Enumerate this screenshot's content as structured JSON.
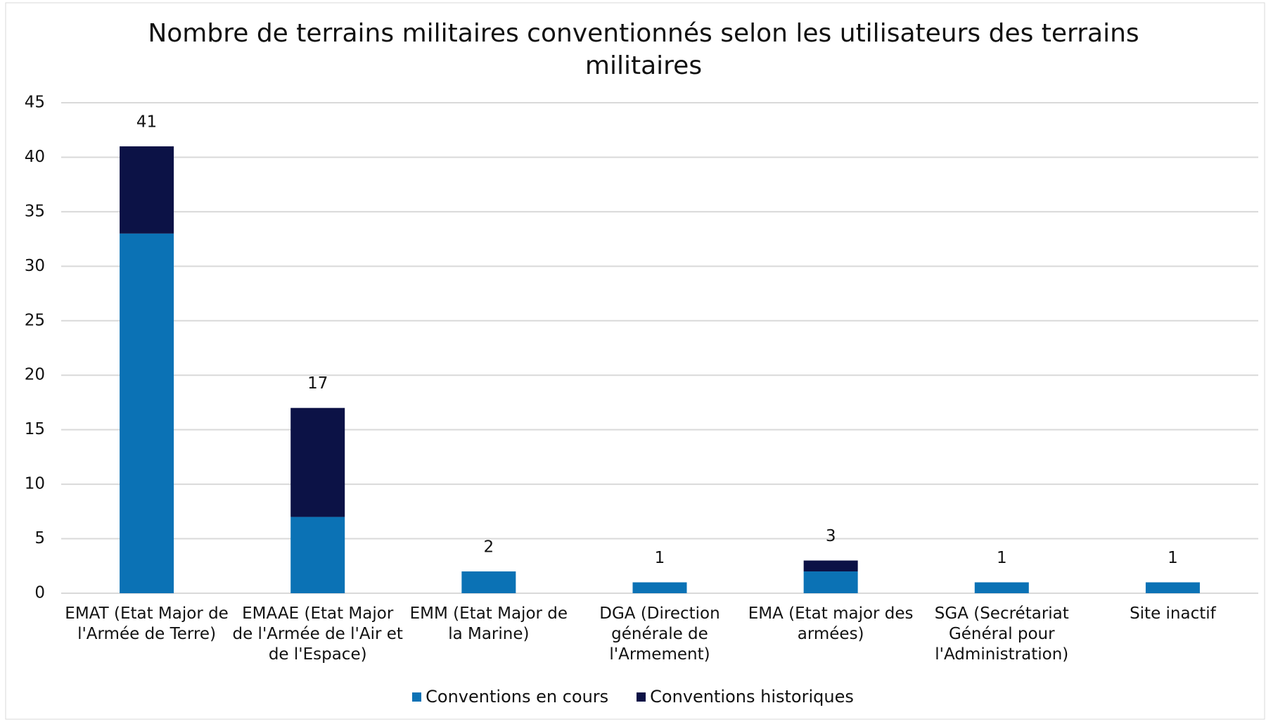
{
  "chart_data": {
    "type": "stacked_bar",
    "title": "Nombre de terrains militaires conventionnés selon les utilisateurs des terrains militaires",
    "categories": [
      "EMAT (Etat Major de l'Armée de Terre)",
      "EMAAE (Etat Major de l'Armée de l'Air et de l'Espace)",
      "EMM (Etat Major de la Marine)",
      "DGA (Direction générale de l'Armement)",
      "EMA (Etat major des armées)",
      "SGA (Secrétariat Général pour l'Administration)",
      "Site inactif"
    ],
    "series": [
      {
        "name": "Conventions en cours",
        "color": "#0b72b5",
        "values": [
          33,
          7,
          2,
          1,
          2,
          1,
          1
        ]
      },
      {
        "name": "Conventions historiques",
        "color": "#0c1246",
        "values": [
          8,
          10,
          0,
          0,
          1,
          0,
          0
        ]
      }
    ],
    "totals": [
      41,
      17,
      2,
      1,
      3,
      1,
      1
    ],
    "ylim": [
      0,
      45
    ],
    "yticks": [
      0,
      5,
      10,
      15,
      20,
      25,
      30,
      35,
      40,
      45
    ],
    "grid": true,
    "legend": "bottom"
  }
}
